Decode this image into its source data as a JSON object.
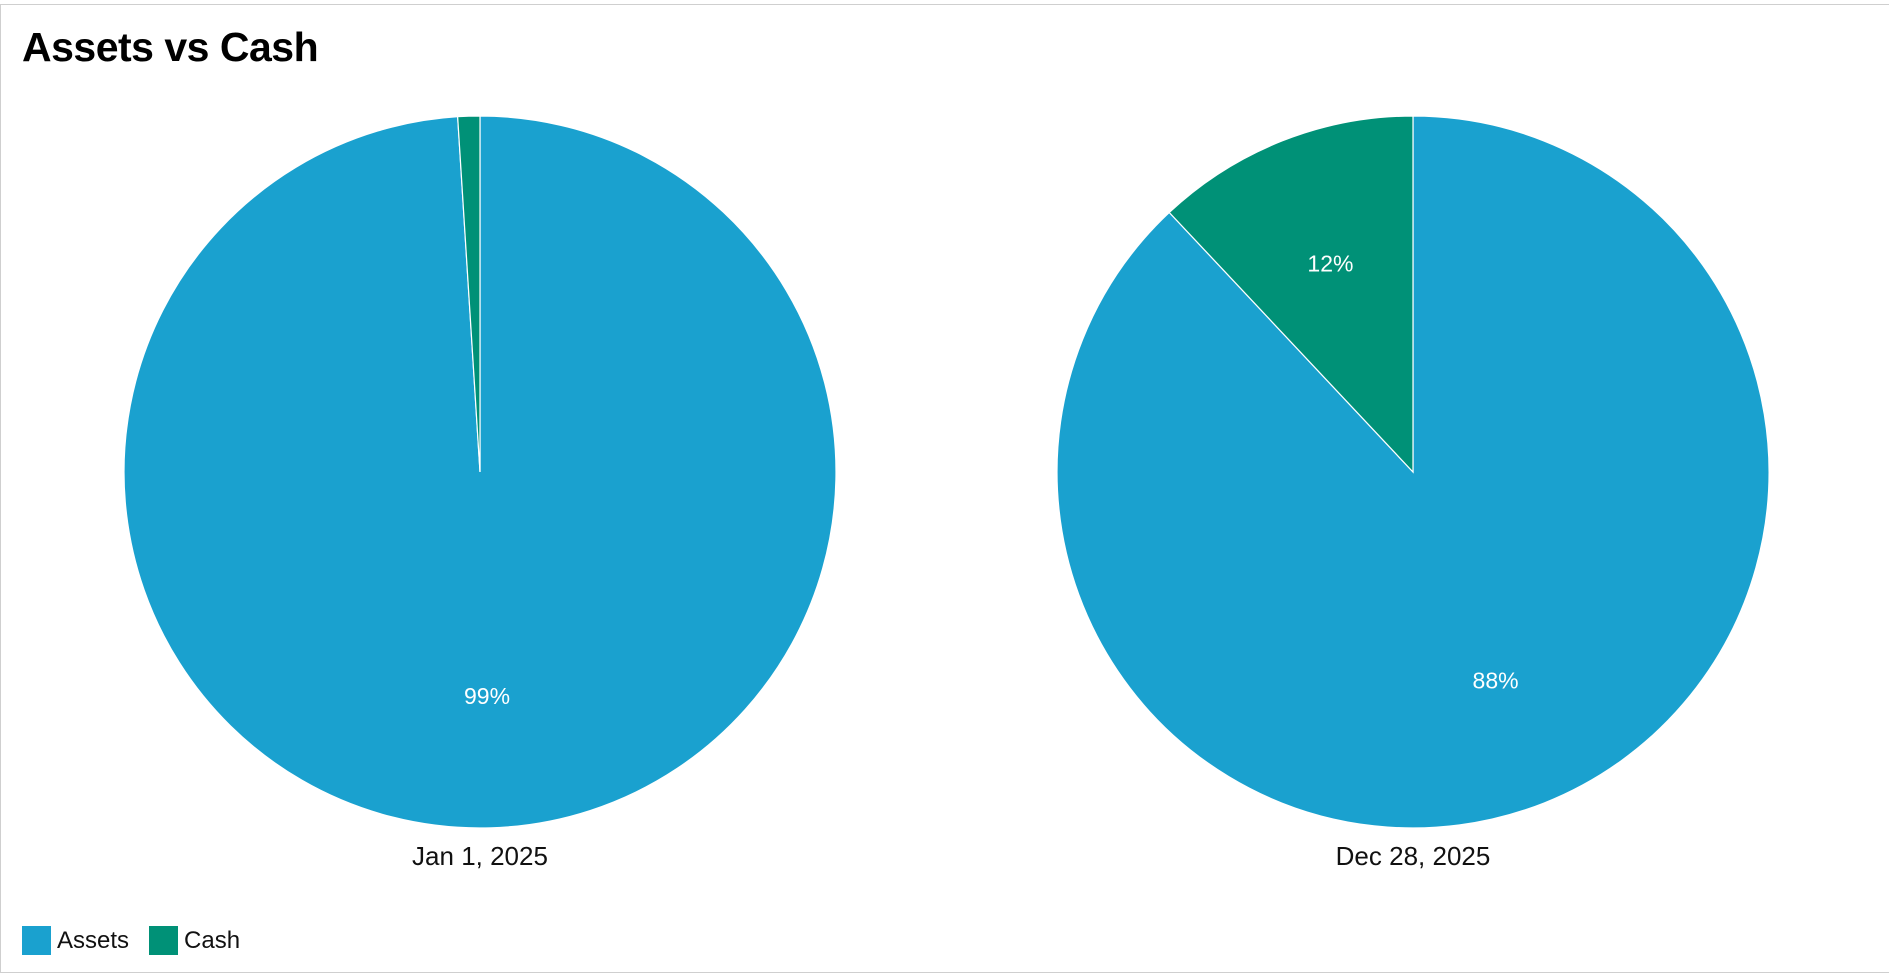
{
  "chart_data": {
    "type": "pie",
    "title": "Assets vs Cash",
    "legend_position": "bottom-left",
    "series_legend": [
      {
        "name": "Assets",
        "color": "#1aa1cf"
      },
      {
        "name": "Cash",
        "color": "#009177"
      }
    ],
    "pies": [
      {
        "label": "Jan 1, 2025",
        "slices": [
          {
            "name": "Assets",
            "value": 99,
            "label": "99%"
          },
          {
            "name": "Cash",
            "value": 1,
            "label": ""
          }
        ]
      },
      {
        "label": "Dec 28, 2025",
        "slices": [
          {
            "name": "Assets",
            "value": 88,
            "label": "88%"
          },
          {
            "name": "Cash",
            "value": 12,
            "label": "12%"
          }
        ]
      }
    ]
  }
}
